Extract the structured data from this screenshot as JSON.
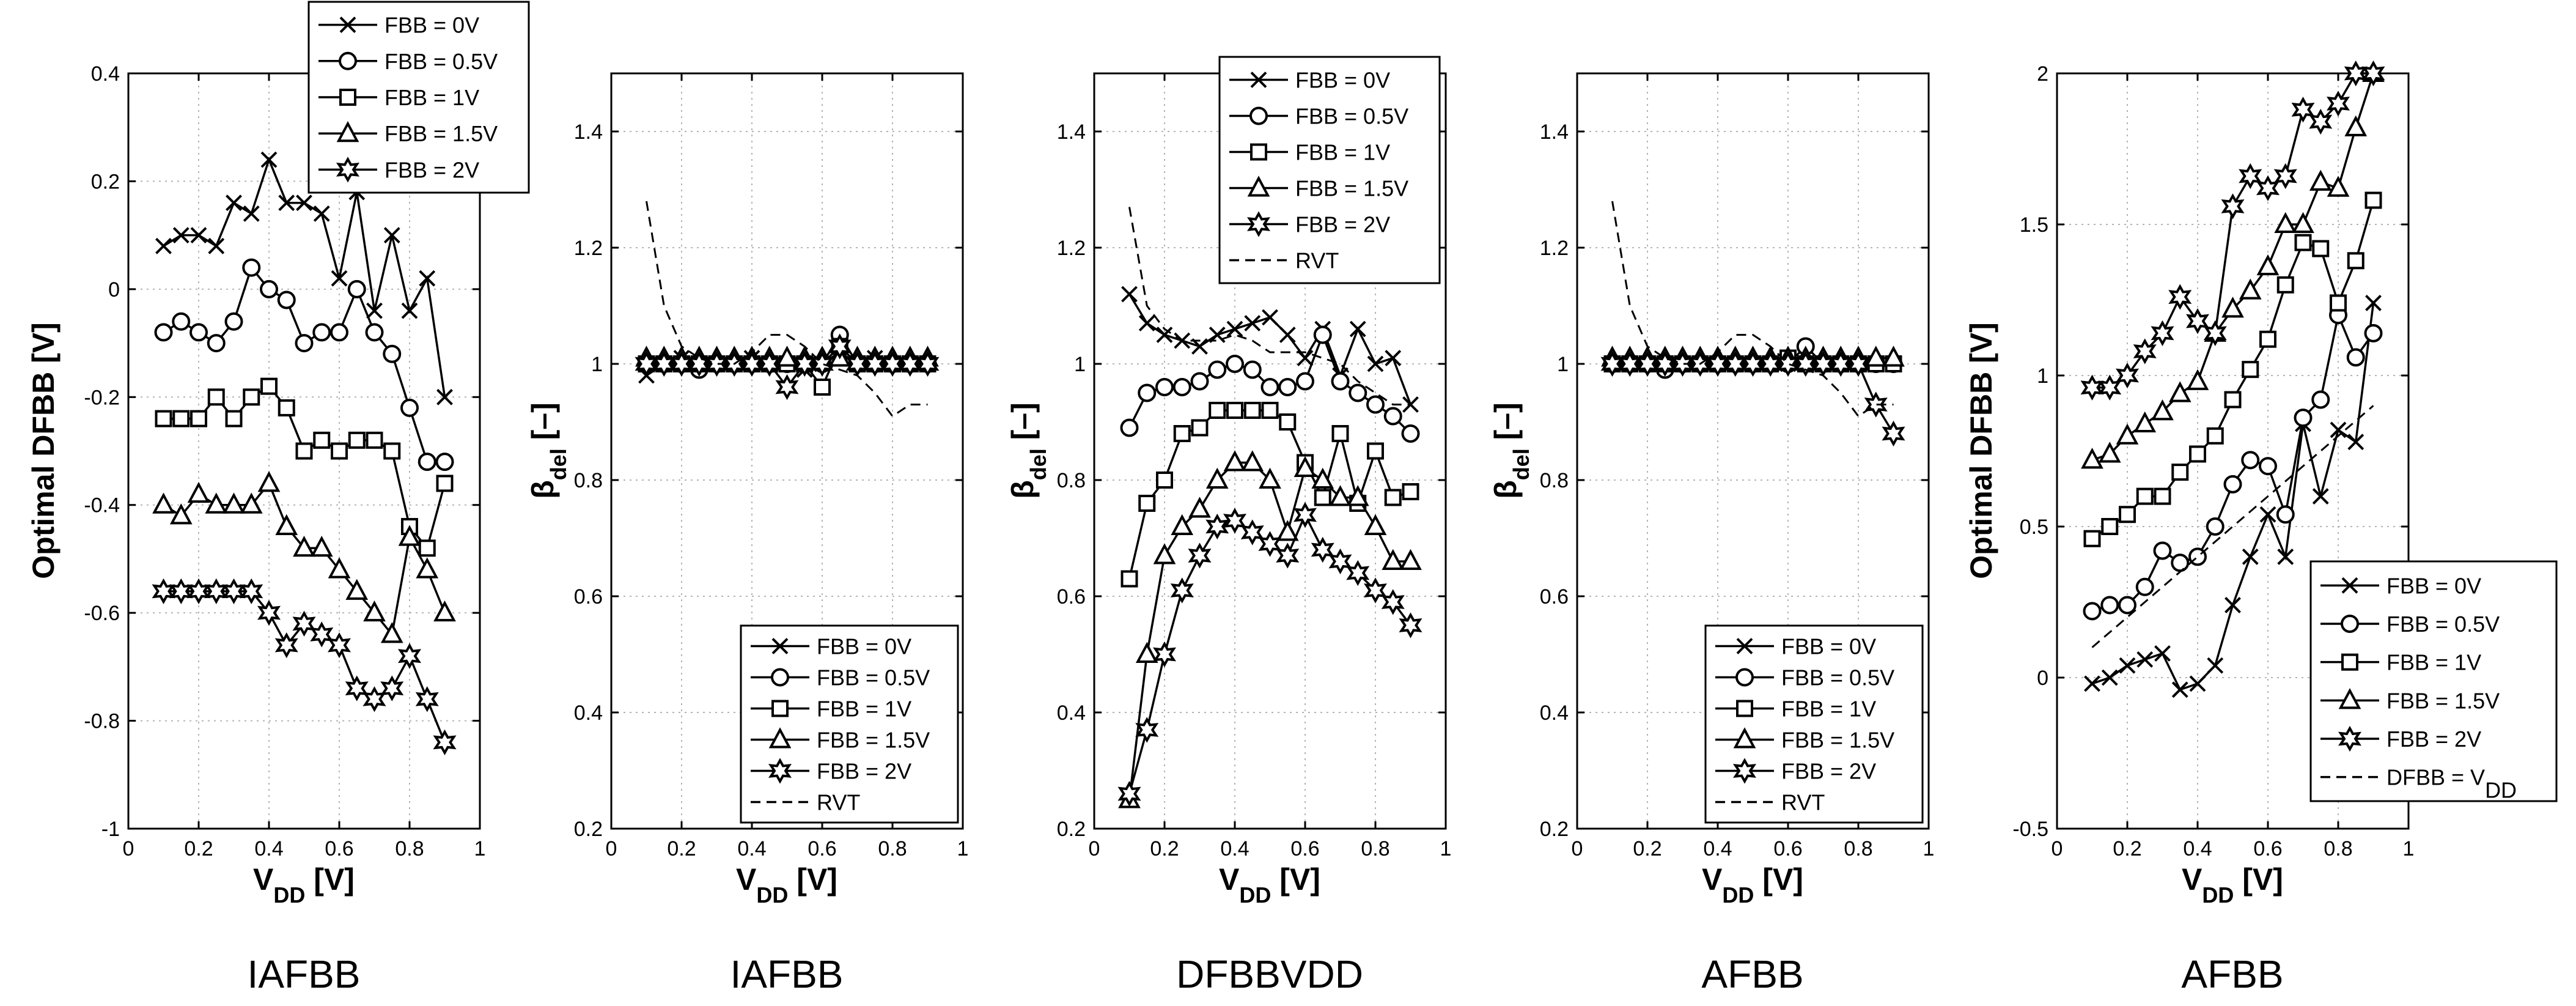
{
  "chart_data": [
    {
      "type": "line",
      "caption": "IAFBB",
      "xlabel": "V_DD [V]",
      "ylabel": "Optimal DFBB [V]",
      "xlim": [
        0,
        1
      ],
      "ylim": [
        -1,
        0.4
      ],
      "xticks": [
        "0",
        "0.2",
        "0.4",
        "0.6",
        "0.8",
        "1"
      ],
      "yticks": [
        "-1",
        "-0.8",
        "-0.6",
        "-0.4",
        "-0.2",
        "0",
        "0.2",
        "0.4"
      ],
      "legend_position": "top-right",
      "x": [
        0.1,
        0.15,
        0.2,
        0.25,
        0.3,
        0.35,
        0.4,
        0.45,
        0.5,
        0.55,
        0.6,
        0.65,
        0.7,
        0.75,
        0.8,
        0.85,
        0.9
      ],
      "series": [
        {
          "name": "FBB = 0V",
          "marker": "x",
          "values": [
            0.08,
            0.1,
            0.1,
            0.08,
            0.16,
            0.14,
            0.24,
            0.16,
            0.16,
            0.14,
            0.02,
            0.18,
            -0.04,
            0.1,
            -0.04,
            0.02,
            -0.2
          ]
        },
        {
          "name": "FBB = 0.5V",
          "marker": "circle",
          "values": [
            -0.08,
            -0.06,
            -0.08,
            -0.1,
            -0.06,
            0.04,
            0.0,
            -0.02,
            -0.1,
            -0.08,
            -0.08,
            0.0,
            -0.08,
            -0.12,
            -0.22,
            -0.32,
            -0.32
          ]
        },
        {
          "name": "FBB = 1V",
          "marker": "square",
          "values": [
            -0.24,
            -0.24,
            -0.24,
            -0.2,
            -0.24,
            -0.2,
            -0.18,
            -0.22,
            -0.3,
            -0.28,
            -0.3,
            -0.28,
            -0.28,
            -0.3,
            -0.44,
            -0.48,
            -0.36
          ]
        },
        {
          "name": "FBB = 1.5V",
          "marker": "triangle",
          "values": [
            -0.4,
            -0.42,
            -0.38,
            -0.4,
            -0.4,
            -0.4,
            -0.36,
            -0.44,
            -0.48,
            -0.48,
            -0.52,
            -0.56,
            -0.6,
            -0.64,
            -0.46,
            -0.52,
            -0.6
          ]
        },
        {
          "name": "FBB = 2V",
          "marker": "star",
          "values": [
            -0.56,
            -0.56,
            -0.56,
            -0.56,
            -0.56,
            -0.56,
            -0.6,
            -0.66,
            -0.62,
            -0.64,
            -0.66,
            -0.74,
            -0.76,
            -0.74,
            -0.68,
            -0.76,
            -0.84
          ]
        }
      ]
    },
    {
      "type": "line",
      "caption": "IAFBB",
      "xlabel": "V_DD [V]",
      "ylabel": "β_del [–]",
      "xlim": [
        0,
        1
      ],
      "ylim": [
        0.2,
        1.5
      ],
      "xticks": [
        "0",
        "0.2",
        "0.4",
        "0.6",
        "0.8",
        "1"
      ],
      "yticks": [
        "0.2",
        "0.4",
        "0.6",
        "0.8",
        "1",
        "1.2",
        "1.4"
      ],
      "legend_position": "bottom-right",
      "x": [
        0.1,
        0.15,
        0.2,
        0.25,
        0.3,
        0.35,
        0.4,
        0.45,
        0.5,
        0.55,
        0.6,
        0.65,
        0.7,
        0.75,
        0.8,
        0.85,
        0.9
      ],
      "series": [
        {
          "name": "FBB = 0V",
          "marker": "x",
          "values": [
            0.98,
            1.0,
            1.01,
            1.0,
            1.0,
            1.0,
            1.01,
            1.0,
            1.0,
            0.99,
            1.0,
            1.02,
            1.0,
            1.01,
            1.0,
            1.0,
            1.0
          ]
        },
        {
          "name": "FBB = 0.5V",
          "marker": "circle",
          "values": [
            1.0,
            1.0,
            1.0,
            0.99,
            1.0,
            1.0,
            1.0,
            1.0,
            1.0,
            1.0,
            1.0,
            1.05,
            1.0,
            1.0,
            1.0,
            1.0,
            1.0
          ]
        },
        {
          "name": "FBB = 1V",
          "marker": "square",
          "values": [
            1.0,
            1.0,
            1.0,
            1.0,
            1.0,
            1.0,
            1.0,
            1.0,
            1.0,
            1.0,
            0.96,
            1.03,
            1.0,
            1.0,
            1.0,
            1.0,
            1.0
          ]
        },
        {
          "name": "FBB = 1.5V",
          "marker": "triangle",
          "values": [
            1.01,
            1.01,
            1.01,
            1.01,
            1.01,
            1.01,
            1.01,
            1.01,
            1.01,
            1.01,
            1.01,
            1.01,
            1.01,
            1.01,
            1.01,
            1.01,
            1.01
          ]
        },
        {
          "name": "FBB = 2V",
          "marker": "star",
          "values": [
            1.0,
            1.0,
            1.0,
            1.0,
            1.0,
            1.0,
            1.0,
            1.0,
            0.96,
            1.0,
            1.0,
            1.03,
            1.0,
            1.0,
            1.0,
            1.0,
            1.0
          ]
        },
        {
          "name": "RVT",
          "marker": "dashed",
          "x": [
            0.1,
            0.15,
            0.2,
            0.25,
            0.3,
            0.35,
            0.4,
            0.45,
            0.5,
            0.55,
            0.6,
            0.65,
            0.7,
            0.75,
            0.8,
            0.85,
            0.9
          ],
          "values": [
            1.28,
            1.1,
            1.03,
            1.01,
            1.0,
            1.0,
            1.02,
            1.05,
            1.05,
            1.03,
            1.0,
            0.99,
            0.98,
            0.95,
            0.91,
            0.93,
            0.93
          ]
        }
      ]
    },
    {
      "type": "line",
      "caption": "DFBBVDD",
      "xlabel": "V_DD [V]",
      "ylabel": "β_del [–]",
      "xlim": [
        0,
        1
      ],
      "ylim": [
        0.2,
        1.5
      ],
      "xticks": [
        "0",
        "0.2",
        "0.4",
        "0.6",
        "0.8",
        "1"
      ],
      "yticks": [
        "0.2",
        "0.4",
        "0.6",
        "0.8",
        "1",
        "1.2",
        "1.4"
      ],
      "legend_position": "top",
      "x": [
        0.1,
        0.15,
        0.2,
        0.25,
        0.3,
        0.35,
        0.4,
        0.45,
        0.5,
        0.55,
        0.6,
        0.65,
        0.7,
        0.75,
        0.8,
        0.85,
        0.9
      ],
      "series": [
        {
          "name": "FBB = 0V",
          "marker": "x",
          "values": [
            1.12,
            1.07,
            1.05,
            1.04,
            1.03,
            1.05,
            1.06,
            1.07,
            1.08,
            1.05,
            1.01,
            1.06,
            0.98,
            1.06,
            1.0,
            1.01,
            0.93
          ]
        },
        {
          "name": "FBB = 0.5V",
          "marker": "circle",
          "values": [
            0.89,
            0.95,
            0.96,
            0.96,
            0.97,
            0.99,
            1.0,
            0.99,
            0.96,
            0.96,
            0.97,
            1.05,
            0.97,
            0.95,
            0.93,
            0.91,
            0.88
          ]
        },
        {
          "name": "FBB = 1V",
          "marker": "square",
          "values": [
            0.63,
            0.76,
            0.8,
            0.88,
            0.89,
            0.92,
            0.92,
            0.92,
            0.92,
            0.9,
            0.83,
            0.77,
            0.88,
            0.76,
            0.85,
            0.77,
            0.78
          ]
        },
        {
          "name": "FBB = 1.5V",
          "marker": "triangle",
          "values": [
            0.25,
            0.5,
            0.67,
            0.72,
            0.75,
            0.8,
            0.83,
            0.83,
            0.8,
            0.71,
            0.82,
            0.8,
            0.77,
            0.77,
            0.72,
            0.66,
            0.66
          ]
        },
        {
          "name": "FBB = 2V",
          "marker": "star",
          "values": [
            0.26,
            0.37,
            0.5,
            0.61,
            0.67,
            0.72,
            0.73,
            0.71,
            0.69,
            0.67,
            0.74,
            0.68,
            0.66,
            0.64,
            0.61,
            0.59,
            0.55
          ]
        },
        {
          "name": "RVT",
          "marker": "dashed",
          "values": [
            1.27,
            1.1,
            1.06,
            1.04,
            1.04,
            1.04,
            1.05,
            1.04,
            1.02,
            1.02,
            1.02,
            1.01,
            1.0,
            0.97,
            0.95,
            0.93,
            0.93
          ]
        }
      ]
    },
    {
      "type": "line",
      "caption": "AFBB",
      "xlabel": "V_DD [V]",
      "ylabel": "β_del [–]",
      "xlim": [
        0,
        1
      ],
      "ylim": [
        0.2,
        1.5
      ],
      "xticks": [
        "0",
        "0.2",
        "0.4",
        "0.6",
        "0.8",
        "1"
      ],
      "yticks": [
        "0.2",
        "0.4",
        "0.6",
        "0.8",
        "1",
        "1.2",
        "1.4"
      ],
      "legend_position": "bottom-right",
      "x": [
        0.1,
        0.15,
        0.2,
        0.25,
        0.3,
        0.35,
        0.4,
        0.45,
        0.5,
        0.55,
        0.6,
        0.65,
        0.7,
        0.75,
        0.8,
        0.85,
        0.9
      ],
      "series": [
        {
          "name": "FBB = 0V",
          "marker": "x",
          "values": [
            1.0,
            1.0,
            1.0,
            1.0,
            1.0,
            1.0,
            1.0,
            1.0,
            1.0,
            1.0,
            1.0,
            1.0,
            1.0,
            1.0,
            1.0,
            1.0,
            1.0
          ]
        },
        {
          "name": "FBB = 0.5V",
          "marker": "circle",
          "values": [
            1.0,
            1.0,
            1.0,
            0.99,
            1.0,
            1.0,
            1.0,
            1.0,
            1.0,
            1.0,
            1.0,
            1.03,
            1.0,
            1.0,
            1.0,
            1.0,
            1.0
          ]
        },
        {
          "name": "FBB = 1V",
          "marker": "square",
          "values": [
            1.0,
            1.0,
            1.0,
            1.0,
            1.0,
            1.0,
            1.0,
            1.0,
            1.0,
            1.0,
            1.01,
            1.0,
            1.0,
            1.0,
            1.0,
            1.0,
            1.0
          ]
        },
        {
          "name": "FBB = 1.5V",
          "marker": "triangle",
          "values": [
            1.01,
            1.01,
            1.01,
            1.01,
            1.01,
            1.01,
            1.01,
            1.01,
            1.01,
            1.01,
            1.01,
            1.01,
            1.01,
            1.01,
            1.01,
            1.01,
            1.01
          ]
        },
        {
          "name": "FBB = 2V",
          "marker": "star",
          "values": [
            1.0,
            1.0,
            1.0,
            1.0,
            1.0,
            1.0,
            1.0,
            1.0,
            1.0,
            1.0,
            1.0,
            1.0,
            1.0,
            1.0,
            1.0,
            0.93,
            0.88
          ]
        },
        {
          "name": "RVT",
          "marker": "dashed",
          "values": [
            1.28,
            1.1,
            1.03,
            1.01,
            1.0,
            1.0,
            1.02,
            1.05,
            1.05,
            1.03,
            1.0,
            0.99,
            0.98,
            0.95,
            0.91,
            0.93,
            0.93
          ]
        }
      ]
    },
    {
      "type": "line",
      "caption": "AFBB",
      "xlabel": "V_DD [V]",
      "ylabel": "Optimal DFBB [V]",
      "xlim": [
        0,
        1
      ],
      "ylim": [
        -0.5,
        2
      ],
      "xticks": [
        "0",
        "0.2",
        "0.4",
        "0.6",
        "0.8",
        "1"
      ],
      "yticks": [
        "-0.5",
        "0",
        "0.5",
        "1",
        "1.5",
        "2"
      ],
      "legend_position": "bottom-right",
      "x": [
        0.1,
        0.15,
        0.2,
        0.25,
        0.3,
        0.35,
        0.4,
        0.45,
        0.5,
        0.55,
        0.6,
        0.65,
        0.7,
        0.75,
        0.8,
        0.85,
        0.9
      ],
      "series": [
        {
          "name": "FBB = 0V",
          "marker": "x",
          "values": [
            -0.02,
            0.0,
            0.04,
            0.06,
            0.08,
            -0.04,
            -0.02,
            0.04,
            0.24,
            0.4,
            0.54,
            0.4,
            0.84,
            0.6,
            0.82,
            0.78,
            1.24
          ]
        },
        {
          "name": "FBB = 0.5V",
          "marker": "circle",
          "values": [
            0.22,
            0.24,
            0.24,
            0.3,
            0.42,
            0.38,
            0.4,
            0.5,
            0.64,
            0.72,
            0.7,
            0.54,
            0.86,
            0.92,
            1.2,
            1.06,
            1.14
          ]
        },
        {
          "name": "FBB = 1V",
          "marker": "square",
          "values": [
            0.46,
            0.5,
            0.54,
            0.6,
            0.6,
            0.68,
            0.74,
            0.8,
            0.92,
            1.02,
            1.12,
            1.3,
            1.44,
            1.42,
            1.24,
            1.38,
            1.58
          ]
        },
        {
          "name": "FBB = 1.5V",
          "marker": "triangle",
          "values": [
            0.72,
            0.74,
            0.8,
            0.84,
            0.88,
            0.94,
            0.98,
            1.14,
            1.22,
            1.28,
            1.36,
            1.5,
            1.5,
            1.64,
            1.62,
            1.82,
            2.0
          ]
        },
        {
          "name": "FBB = 2V",
          "marker": "star",
          "values": [
            0.96,
            0.96,
            1.0,
            1.08,
            1.14,
            1.26,
            1.18,
            1.14,
            1.56,
            1.66,
            1.62,
            1.66,
            1.88,
            1.84,
            1.9,
            2.0,
            2.0
          ]
        },
        {
          "name": "DFBB = V_DD",
          "marker": "dashed",
          "x": [
            0.1,
            0.9
          ],
          "values": [
            0.1,
            0.9
          ]
        }
      ]
    }
  ]
}
